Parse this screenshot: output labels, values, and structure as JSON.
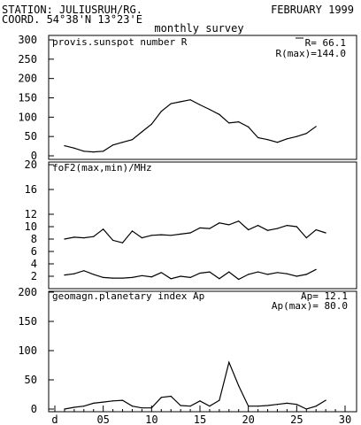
{
  "header": {
    "station": "STATION: JULIUSRUH/RG.",
    "coord": "COORD. 54°38'N 13°23'E",
    "month": "FEBRUARY 1999",
    "survey": "monthly survey"
  },
  "chart_data": [
    {
      "type": "line",
      "title": "provis.sunspot number R",
      "stats": [
        "R= 66.1",
        "R(max)=144.0"
      ],
      "ylim": [
        0,
        300
      ],
      "yticks": [
        0,
        50,
        100,
        150,
        200,
        250,
        300
      ],
      "xlim": [
        0,
        30
      ],
      "x": [
        1,
        2,
        3,
        4,
        5,
        6,
        7,
        8,
        9,
        10,
        11,
        12,
        13,
        14,
        15,
        16,
        17,
        18,
        19,
        20,
        21,
        22,
        23,
        24,
        25,
        26,
        27,
        28
      ],
      "series": [
        {
          "values": [
            26,
            20,
            12,
            10,
            12,
            28,
            35,
            42,
            62,
            82,
            115,
            135,
            140,
            145,
            132,
            120,
            107,
            85,
            88,
            75,
            47,
            42,
            35,
            44,
            50,
            58,
            76,
            null
          ]
        }
      ]
    },
    {
      "type": "line",
      "title": "foF2(max,min)/MHz",
      "ylim": [
        0,
        20
      ],
      "yticks": [
        2,
        4,
        6,
        8,
        10,
        12,
        16,
        20
      ],
      "xlim": [
        0,
        30
      ],
      "x": [
        1,
        2,
        3,
        4,
        5,
        6,
        7,
        8,
        9,
        10,
        11,
        12,
        13,
        14,
        15,
        16,
        17,
        18,
        19,
        20,
        21,
        22,
        23,
        24,
        25,
        26,
        27,
        28
      ],
      "series": [
        {
          "name": "max",
          "values": [
            8.0,
            8.3,
            8.2,
            8.4,
            9.6,
            7.8,
            7.4,
            9.3,
            8.2,
            8.6,
            8.7,
            8.6,
            8.8,
            9.0,
            9.8,
            9.7,
            10.6,
            10.3,
            10.9,
            9.5,
            10.2,
            9.4,
            9.7,
            10.2,
            10.0,
            8.2,
            9.5,
            9.0
          ]
        },
        {
          "name": "min",
          "values": [
            2.2,
            2.4,
            2.9,
            2.3,
            1.8,
            1.7,
            1.7,
            1.8,
            2.1,
            1.9,
            2.6,
            1.6,
            2.0,
            1.8,
            2.5,
            2.7,
            1.6,
            2.7,
            1.5,
            2.3,
            2.7,
            2.3,
            2.6,
            2.4,
            2.0,
            2.3,
            3.1,
            null
          ]
        }
      ]
    },
    {
      "type": "line",
      "title": "geomagn.planetary index Ap",
      "stats": [
        "Ap= 12.1",
        "Ap(max)= 80.0"
      ],
      "ylim": [
        0,
        200
      ],
      "yticks": [
        0,
        50,
        100,
        150,
        200
      ],
      "xlim": [
        0,
        30
      ],
      "xticks": [
        "d",
        "05",
        "10",
        "15",
        "20",
        "25",
        "30"
      ],
      "x": [
        1,
        2,
        3,
        4,
        5,
        6,
        7,
        8,
        9,
        10,
        11,
        12,
        13,
        14,
        15,
        16,
        17,
        18,
        19,
        20,
        21,
        22,
        23,
        24,
        25,
        26,
        27,
        28
      ],
      "series": [
        {
          "values": [
            0,
            3,
            5,
            10,
            12,
            14,
            15,
            5,
            2,
            2,
            20,
            22,
            6,
            5,
            14,
            5,
            15,
            80,
            40,
            5,
            5,
            6,
            8,
            10,
            8,
            0,
            5,
            15
          ]
        }
      ]
    }
  ]
}
